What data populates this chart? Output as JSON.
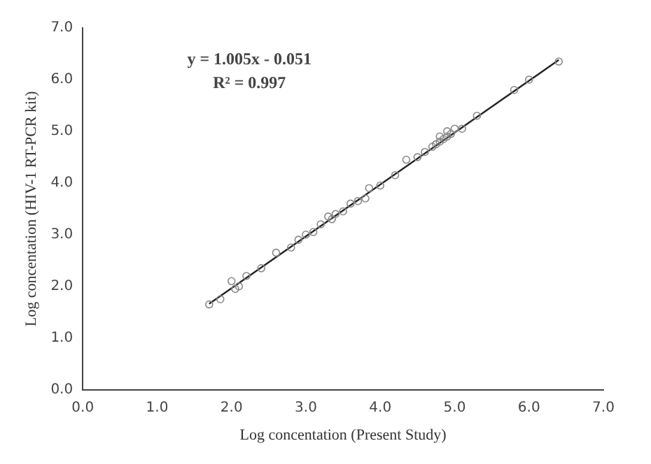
{
  "chart_data": {
    "type": "scatter",
    "xlabel": "Log concentation (Present Study)",
    "ylabel": "Log concentation (HIV-1 RT-PCR kit)",
    "annotations": [
      "y = 1.005x - 0.051",
      "R² = 0.997"
    ],
    "xlim": [
      0,
      7
    ],
    "xticks": [
      {
        "value": 0,
        "label": "0.0"
      },
      {
        "value": 1,
        "label": "1.0"
      },
      {
        "value": 2,
        "label": "2.0"
      },
      {
        "value": 3,
        "label": "3.0"
      },
      {
        "value": 4,
        "label": "4.0"
      },
      {
        "value": 5,
        "label": "5.0"
      },
      {
        "value": 6,
        "label": "6.0"
      },
      {
        "value": 7,
        "label": "7.0"
      }
    ],
    "ylim": [
      0,
      7
    ],
    "yticks": [
      {
        "value": 0,
        "label": "0.0"
      },
      {
        "value": 1,
        "label": "1.0"
      },
      {
        "value": 2,
        "label": "2.0"
      },
      {
        "value": 3,
        "label": "3.0"
      },
      {
        "value": 4,
        "label": "4.0"
      },
      {
        "value": 5,
        "label": "5.0"
      },
      {
        "value": 6,
        "label": "6.0"
      },
      {
        "value": 7,
        "label": "7.0"
      }
    ],
    "grid": false,
    "marker": "circle",
    "series": [
      {
        "type": "scatter",
        "color": "#888888",
        "x": [
          1.7,
          1.85,
          2.0,
          2.05,
          2.1,
          2.2,
          2.4,
          2.6,
          2.8,
          2.9,
          3.0,
          3.1,
          3.2,
          3.3,
          3.35,
          3.4,
          3.5,
          3.6,
          3.7,
          3.8,
          3.85,
          4.0,
          4.2,
          4.35,
          4.5,
          4.6,
          4.7,
          4.75,
          4.8,
          4.85,
          4.9,
          4.95,
          4.8,
          4.9,
          5.0,
          5.1,
          5.3,
          5.8,
          6.0,
          6.4
        ],
        "values": [
          1.65,
          1.75,
          2.1,
          1.95,
          2.0,
          2.2,
          2.35,
          2.65,
          2.75,
          2.9,
          3.0,
          3.05,
          3.2,
          3.35,
          3.3,
          3.4,
          3.45,
          3.6,
          3.65,
          3.7,
          3.9,
          3.95,
          4.15,
          4.45,
          4.5,
          4.6,
          4.7,
          4.75,
          4.8,
          4.85,
          4.9,
          4.95,
          4.9,
          5.0,
          5.05,
          5.05,
          5.3,
          5.8,
          6.0,
          6.35
        ]
      },
      {
        "type": "line",
        "color": "#222222",
        "marker": "none",
        "x": [
          1.7,
          6.4
        ],
        "values": [
          1.66,
          6.38
        ]
      }
    ]
  }
}
